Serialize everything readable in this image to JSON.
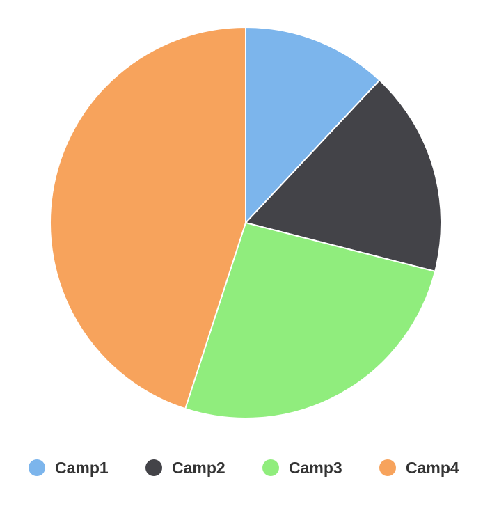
{
  "colors": {
    "background": "#ffffff",
    "slice_border": "#ffffff",
    "legend_text": "#333333"
  },
  "chart_data": {
    "type": "pie",
    "title": "",
    "start_angle_deg": 0,
    "direction": "clockwise",
    "legend": "bottom",
    "slices": [
      {
        "label": "Camp1",
        "value": 12,
        "color": "#7cb5ec"
      },
      {
        "label": "Camp2",
        "value": 17,
        "color": "#434348"
      },
      {
        "label": "Camp3",
        "value": 26,
        "color": "#90ed7d"
      },
      {
        "label": "Camp4",
        "value": 45,
        "color": "#f7a35c"
      }
    ]
  }
}
